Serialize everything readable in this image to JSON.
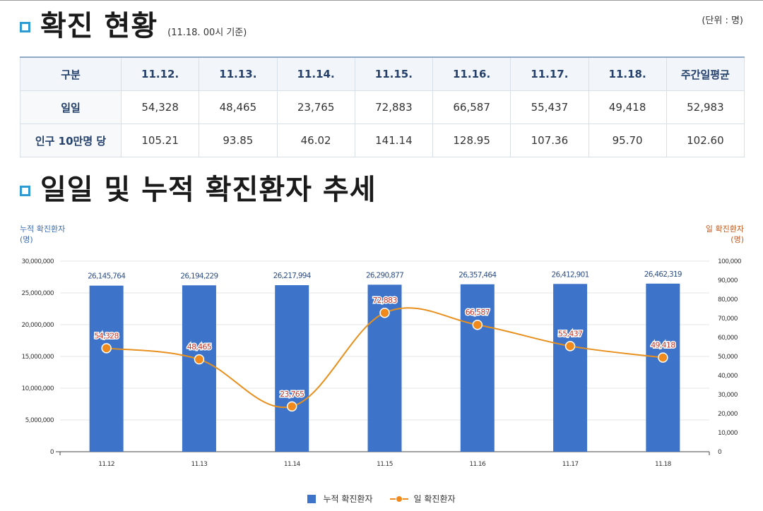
{
  "section1": {
    "title": "확진 현황",
    "subtitle": "(11.18. 00시 기준)",
    "unit": "(단위 : 명)"
  },
  "table": {
    "headers": [
      "구분",
      "11.12.",
      "11.13.",
      "11.14.",
      "11.15.",
      "11.16.",
      "11.17.",
      "11.18.",
      "주간일평균"
    ],
    "rows": [
      {
        "label": "일일",
        "cells": [
          "54,328",
          "48,465",
          "23,765",
          "72,883",
          "66,587",
          "55,437",
          "49,418",
          "52,983"
        ]
      },
      {
        "label": "인구 10만명 당",
        "cells": [
          "105.21",
          "93.85",
          "46.02",
          "141.14",
          "128.95",
          "107.36",
          "95.70",
          "102.60"
        ]
      }
    ]
  },
  "section2": {
    "title": "일일 및 누적 확진환자 추세"
  },
  "chart_data": {
    "type": "bar",
    "categories": [
      "11.12",
      "11.13",
      "11.14",
      "11.15",
      "11.16",
      "11.17",
      "11.18"
    ],
    "series": [
      {
        "name": "누적 확진환자",
        "type": "bar",
        "axis": "left",
        "color": "#3d73c9",
        "values": [
          26145764,
          26194229,
          26217994,
          26290877,
          26357464,
          26412901,
          26462319
        ],
        "labels": [
          "26,145,764",
          "26,194,229",
          "26,217,994",
          "26,290,877",
          "26,357,464",
          "26,412,901",
          "26,462,319"
        ]
      },
      {
        "name": "일 확진환자",
        "type": "line",
        "axis": "right",
        "color": "#f08a1c",
        "values": [
          54328,
          48465,
          23765,
          72883,
          66587,
          55437,
          49418
        ],
        "labels": [
          "54,328",
          "48,465",
          "23,765",
          "72,883",
          "66,587",
          "55,437",
          "49,418"
        ]
      }
    ],
    "y_left": {
      "label": "누적 확진환자",
      "unit": "(명)",
      "range": [
        0,
        30000000
      ],
      "ticks": [
        "0",
        "5,000,000",
        "10,000,000",
        "15,000,000",
        "20,000,000",
        "25,000,000",
        "30,000,000"
      ]
    },
    "y_right": {
      "label": "일 확진환자",
      "unit": "(명)",
      "range": [
        0,
        100000
      ],
      "ticks": [
        "0",
        "10,000",
        "20,000",
        "30,000",
        "40,000",
        "50,000",
        "60,000",
        "70,000",
        "80,000",
        "90,000",
        "100,000"
      ]
    },
    "grid": true,
    "legend": "bottom-center"
  }
}
